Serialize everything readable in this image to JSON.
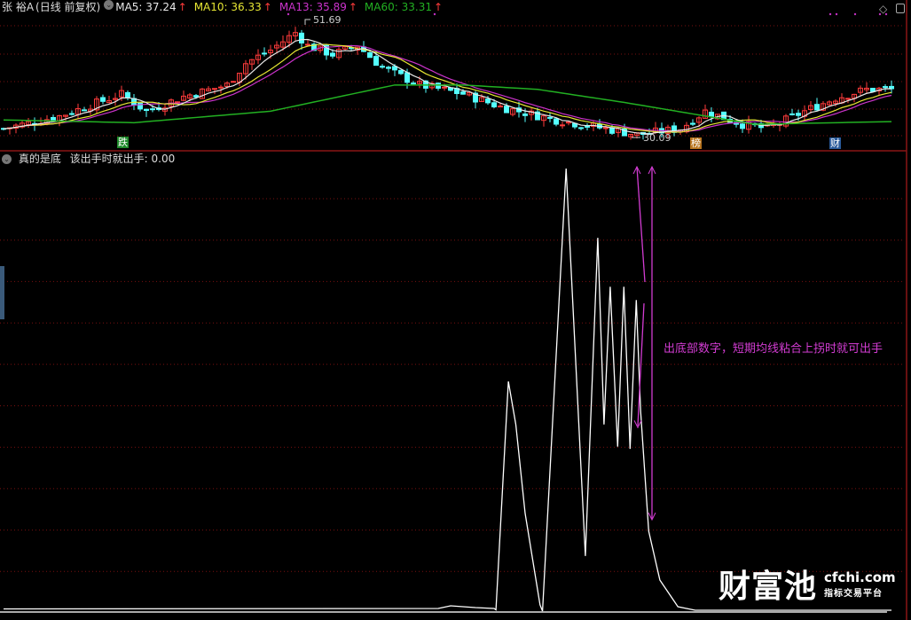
{
  "header": {
    "stock_name": "张 裕A",
    "period": "(日线 前复权)",
    "ma5": "MA5: 37.24",
    "ma10": "MA10: 36.33",
    "ma13": "MA13: 35.89",
    "ma60": "MA60: 33.31",
    "up_arrow": "↑"
  },
  "price_panel": {
    "high_label": "51.69",
    "low_label": "30.09",
    "signals": [
      {
        "text": "跌",
        "color": "#1e8a2a"
      },
      {
        "text": "榜",
        "color": "#b8741e"
      },
      {
        "text": "财",
        "color": "#2a5a9a"
      }
    ]
  },
  "indicator_panel": {
    "title": "真的是底",
    "formula_label": "该出手时就出手: 0.00",
    "annotation": "出底部数字，短期均线粘合上拐时就可出手"
  },
  "watermark": {
    "brand": "财富池",
    "domain": "cfchi.com",
    "slogan": "指标交易平台"
  },
  "icons": [
    "collapse-circle-icon",
    "diamond-icon",
    "window-toggle-icon"
  ],
  "colors": {
    "ma5": "#e8e8e8",
    "ma10": "#e6e633",
    "ma13": "#cc33cc",
    "ma60": "#22b022",
    "up_candle": "#ff3b3b",
    "down_candle": "#54ffff",
    "indicator": "#ffffff",
    "annotation": "#d23cd2",
    "grid": "#7a1010"
  },
  "chart_data": [
    {
      "type": "candlestick",
      "price_path": [
        [
          0,
          31.7
        ],
        [
          9,
          34
        ],
        [
          19,
          38
        ],
        [
          23,
          34.9
        ],
        [
          29,
          37.6
        ],
        [
          36,
          39.7
        ],
        [
          39,
          43.7
        ],
        [
          43,
          46.1
        ],
        [
          47,
          49.3
        ],
        [
          49,
          46.9
        ],
        [
          53,
          45.3
        ],
        [
          57,
          46.9
        ],
        [
          61,
          42.9
        ],
        [
          67,
          39.7
        ],
        [
          74,
          38.1
        ],
        [
          80,
          35.7
        ],
        [
          89,
          33.3
        ],
        [
          97,
          31.7
        ],
        [
          102,
          30.6
        ],
        [
          109,
          31.7
        ],
        [
          113,
          34.9
        ],
        [
          119,
          32.5
        ],
        [
          123,
          31.7
        ],
        [
          129,
          34.9
        ],
        [
          134,
          37.3
        ],
        [
          139,
          38.9
        ],
        [
          143,
          38.9
        ]
      ],
      "ma60_path": [
        [
          0,
          33.3
        ],
        [
          21,
          32.8
        ],
        [
          43,
          34.9
        ],
        [
          63,
          39.7
        ],
        [
          74,
          39.7
        ],
        [
          86,
          38.9
        ],
        [
          100,
          36.5
        ],
        [
          121,
          32.5
        ],
        [
          143,
          33.0
        ]
      ],
      "high": 51.69,
      "low": 30.09
    },
    {
      "type": "line",
      "series_name": "真的是底",
      "points": [
        [
          0,
          0.5
        ],
        [
          70,
          0.6
        ],
        [
          72,
          1.2
        ],
        [
          76,
          0.8
        ],
        [
          79,
          0.6
        ],
        [
          79.3,
          0.3
        ],
        [
          81.3,
          51.7
        ],
        [
          82.5,
          42
        ],
        [
          84,
          22
        ],
        [
          86.4,
          1.4
        ],
        [
          86.8,
          0
        ],
        [
          90.6,
          99.6
        ],
        [
          93.7,
          12.4
        ],
        [
          95.7,
          84
        ],
        [
          96.7,
          42
        ],
        [
          97.7,
          73
        ],
        [
          98.9,
          37
        ],
        [
          99.9,
          73
        ],
        [
          100.9,
          36.5
        ],
        [
          101.9,
          70
        ],
        [
          102.6,
          45
        ],
        [
          103.9,
          18
        ],
        [
          105.7,
          7
        ],
        [
          108.6,
          1
        ],
        [
          111.4,
          0.2
        ],
        [
          143,
          0.2
        ]
      ],
      "ylim": [
        0,
        100
      ]
    }
  ]
}
